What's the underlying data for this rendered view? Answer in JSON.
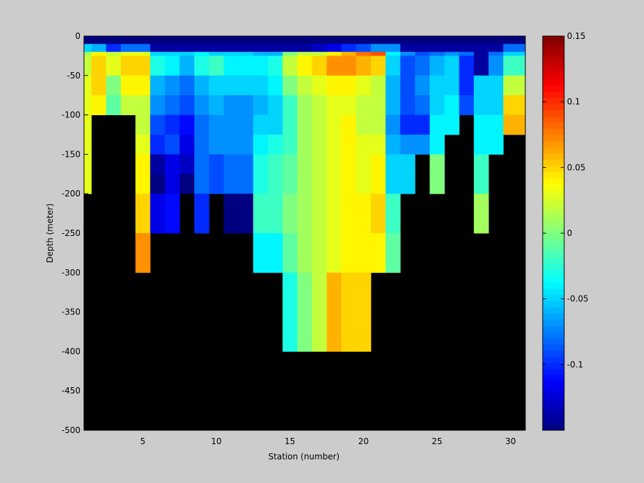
{
  "chart_data": {
    "type": "heatmap",
    "title": "",
    "xlabel": "Station (number)",
    "ylabel": "Depth (meter)",
    "xlim": [
      1,
      31
    ],
    "ylim": [
      -500,
      0
    ],
    "x_ticks": [
      5,
      10,
      15,
      20,
      25,
      30
    ],
    "y_ticks": [
      0,
      -50,
      -100,
      -150,
      -200,
      -250,
      -300,
      -350,
      -400,
      -450,
      -500
    ],
    "colorbar": {
      "colormap": "jet",
      "clim": [
        -0.15,
        0.15
      ],
      "ticks": [
        0.15,
        0.1,
        0.05,
        0,
        -0.05,
        -0.1
      ],
      "tick_labels": [
        "0.15",
        "0.1",
        "0.05",
        "0",
        "-0.05",
        "-0.1"
      ],
      "levels": 64
    },
    "stations": [
      1,
      2,
      3,
      4,
      5,
      6,
      7,
      8,
      9,
      10,
      11,
      12,
      13,
      14,
      15,
      16,
      17,
      18,
      19,
      20,
      21,
      22,
      23,
      24,
      25,
      26,
      27,
      28,
      29,
      30
    ],
    "depths": [
      0,
      -10,
      -20,
      -25,
      -50,
      -75,
      -100,
      -125,
      -150,
      -175,
      -200,
      -250,
      -300,
      -400
    ],
    "missing_color": "#000000",
    "values": [
      [
        -0.15,
        -0.15,
        -0.15,
        -0.15,
        -0.15,
        -0.15,
        -0.15,
        -0.15,
        -0.15,
        -0.15,
        -0.15,
        -0.15,
        -0.15,
        -0.15,
        -0.15,
        -0.15,
        -0.15,
        -0.15,
        -0.15,
        -0.15,
        -0.15,
        -0.15,
        -0.15,
        -0.15,
        -0.15,
        -0.15,
        -0.15,
        -0.15,
        -0.15,
        -0.15
      ],
      [
        -0.05,
        -0.06,
        -0.1,
        -0.08,
        -0.08,
        -0.14,
        -0.14,
        -0.14,
        -0.14,
        -0.14,
        -0.14,
        -0.14,
        -0.14,
        -0.14,
        -0.14,
        -0.14,
        -0.13,
        -0.12,
        -0.1,
        -0.09,
        -0.07,
        -0.07,
        -0.14,
        -0.14,
        -0.14,
        -0.14,
        -0.14,
        -0.14,
        -0.14,
        -0.08
      ],
      [
        0.01,
        0.04,
        0.02,
        0.03,
        0.03,
        -0.05,
        -0.05,
        -0.05,
        -0.04,
        -0.05,
        -0.05,
        -0.05,
        -0.06,
        -0.06,
        0.0,
        0.02,
        0.02,
        0.04,
        0.06,
        0.08,
        0.09,
        -0.04,
        -0.07,
        -0.09,
        -0.08,
        -0.07,
        -0.08,
        -0.14,
        -0.08,
        -0.05
      ],
      [
        0.02,
        0.05,
        0.03,
        0.05,
        0.05,
        -0.03,
        -0.04,
        -0.06,
        -0.03,
        -0.02,
        -0.04,
        -0.04,
        -0.04,
        -0.03,
        0.02,
        0.04,
        0.05,
        0.07,
        0.07,
        0.06,
        0.05,
        -0.05,
        -0.09,
        -0.08,
        -0.06,
        -0.05,
        -0.1,
        -0.14,
        -0.07,
        -0.02
      ],
      [
        0.03,
        0.05,
        0.0,
        0.04,
        0.04,
        -0.06,
        -0.07,
        -0.08,
        -0.06,
        -0.05,
        -0.05,
        -0.05,
        -0.05,
        -0.04,
        0.0,
        0.02,
        0.03,
        0.04,
        0.04,
        0.03,
        0.02,
        -0.06,
        -0.09,
        -0.07,
        -0.05,
        -0.05,
        -0.1,
        -0.05,
        -0.05,
        0.02
      ],
      [
        0.03,
        0.04,
        -0.01,
        0.02,
        0.02,
        -0.07,
        -0.08,
        -0.09,
        -0.07,
        -0.06,
        -0.07,
        -0.07,
        -0.06,
        -0.05,
        -0.02,
        0.01,
        0.02,
        0.03,
        0.03,
        0.02,
        0.02,
        -0.06,
        -0.09,
        -0.08,
        -0.05,
        -0.04,
        -0.09,
        -0.05,
        -0.05,
        0.05
      ],
      [
        0.03,
        null,
        null,
        null,
        0.02,
        -0.09,
        -0.1,
        -0.11,
        -0.08,
        -0.07,
        -0.07,
        -0.07,
        -0.05,
        -0.05,
        -0.02,
        0.01,
        0.02,
        0.03,
        0.04,
        0.02,
        0.02,
        -0.07,
        -0.1,
        -0.1,
        -0.04,
        -0.04,
        null,
        -0.04,
        -0.04,
        0.06
      ],
      [
        0.03,
        null,
        null,
        null,
        0.03,
        -0.1,
        -0.09,
        -0.12,
        -0.08,
        -0.07,
        -0.07,
        -0.07,
        -0.04,
        -0.03,
        -0.02,
        0.01,
        0.02,
        0.03,
        0.04,
        0.03,
        0.03,
        -0.06,
        -0.07,
        -0.07,
        -0.04,
        null,
        null,
        -0.04,
        -0.04,
        null
      ],
      [
        0.03,
        null,
        null,
        null,
        0.04,
        -0.14,
        -0.12,
        -0.13,
        -0.08,
        -0.09,
        -0.08,
        -0.08,
        -0.03,
        -0.02,
        -0.01,
        0.01,
        0.02,
        0.03,
        0.04,
        0.03,
        0.04,
        -0.05,
        -0.05,
        null,
        0.0,
        null,
        null,
        -0.02,
        null,
        null
      ],
      [
        0.03,
        null,
        null,
        null,
        0.04,
        -0.15,
        -0.12,
        -0.15,
        -0.08,
        -0.09,
        -0.08,
        -0.08,
        -0.03,
        -0.02,
        -0.01,
        0.01,
        0.02,
        0.03,
        0.04,
        0.03,
        0.04,
        -0.05,
        -0.05,
        null,
        0.0,
        null,
        null,
        -0.02,
        null,
        null
      ],
      [
        null,
        null,
        null,
        null,
        0.05,
        -0.12,
        -0.11,
        null,
        -0.1,
        null,
        -0.15,
        -0.15,
        -0.02,
        -0.02,
        0.0,
        0.01,
        0.02,
        0.03,
        0.04,
        0.04,
        0.05,
        -0.02,
        null,
        null,
        null,
        null,
        null,
        0.01,
        null,
        null
      ],
      [
        null,
        null,
        null,
        null,
        0.07,
        null,
        null,
        null,
        null,
        null,
        null,
        null,
        -0.04,
        -0.04,
        -0.01,
        0.01,
        0.02,
        0.03,
        0.04,
        0.04,
        0.04,
        -0.01,
        null,
        null,
        null,
        null,
        null,
        null,
        null,
        null
      ],
      [
        null,
        null,
        null,
        null,
        null,
        null,
        null,
        null,
        null,
        null,
        null,
        null,
        null,
        null,
        -0.03,
        0.0,
        0.02,
        0.06,
        0.05,
        0.05,
        null,
        null,
        null,
        null,
        null,
        null,
        null,
        null,
        null,
        null
      ],
      [
        null,
        null,
        null,
        null,
        null,
        null,
        null,
        null,
        null,
        null,
        null,
        null,
        null,
        null,
        null,
        null,
        null,
        null,
        null,
        null,
        null,
        null,
        null,
        null,
        null,
        null,
        null,
        null,
        null,
        null
      ]
    ]
  }
}
